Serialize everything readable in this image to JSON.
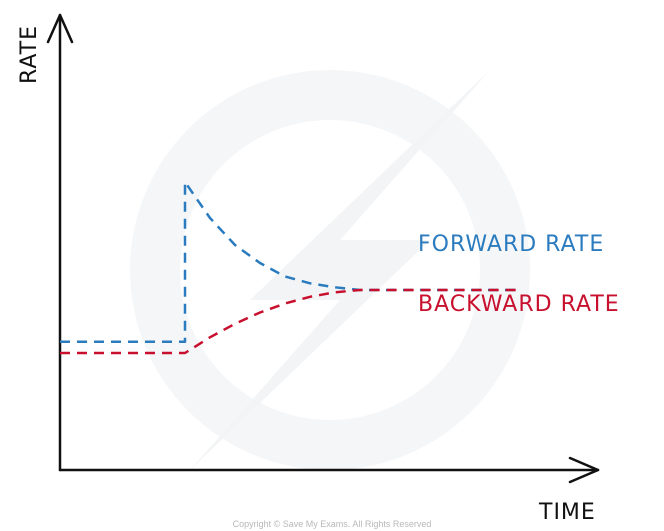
{
  "chart_data": {
    "type": "line",
    "xlabel": "TIME",
    "ylabel": "RATE",
    "xlim": [
      0,
      10
    ],
    "ylim": [
      0,
      10
    ],
    "grid": false,
    "series": [
      {
        "name": "FORWARD RATE",
        "color": "#2b7bbf",
        "x": [
          0,
          2.5,
          2.5,
          3.0,
          3.5,
          4.0,
          4.5,
          5.0,
          5.5,
          6.0,
          7.0,
          8.0,
          9.2
        ],
        "y": [
          2.85,
          2.85,
          6.4,
          5.6,
          5.0,
          4.6,
          4.3,
          4.15,
          4.06,
          4.0,
          4.0,
          4.0,
          4.0
        ]
      },
      {
        "name": "BACKWARD RATE",
        "color": "#c8102e",
        "x": [
          0,
          2.5,
          3.0,
          3.5,
          4.0,
          4.5,
          5.0,
          5.5,
          6.0,
          7.0,
          8.0,
          9.2
        ],
        "y": [
          2.6,
          2.6,
          2.95,
          3.25,
          3.5,
          3.7,
          3.85,
          3.95,
          4.0,
          4.0,
          4.0,
          4.0
        ]
      }
    ]
  },
  "footer": {
    "copyright": "Copyright © Save My Exams. All Rights Reserved"
  },
  "colors": {
    "axis": "#111111",
    "watermark": "#f2f4f6"
  }
}
